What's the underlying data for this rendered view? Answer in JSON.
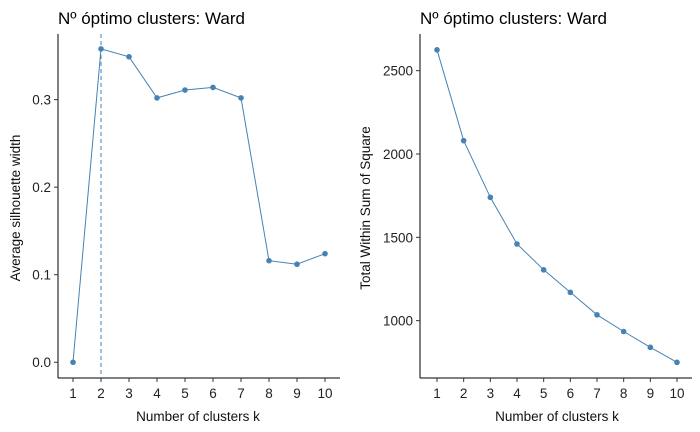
{
  "chart_data": [
    {
      "type": "line",
      "title": "Nº óptimo clusters: Ward",
      "xlabel": "Number of clusters k",
      "ylabel": "Average silhouette width",
      "categories": [
        "1",
        "2",
        "3",
        "4",
        "5",
        "6",
        "7",
        "8",
        "9",
        "10"
      ],
      "values": [
        0.0,
        0.358,
        0.349,
        0.302,
        0.311,
        0.314,
        0.302,
        0.116,
        0.112,
        0.124
      ],
      "yticks": [
        0.0,
        0.1,
        0.2,
        0.3
      ],
      "ytick_labels": [
        "0.0",
        "0.1",
        "0.2",
        "0.3"
      ],
      "ylim": [
        -0.018,
        0.375
      ],
      "optimal_k": "2",
      "grid": false,
      "color": "#4682B4"
    },
    {
      "type": "line",
      "title": "Nº óptimo clusters: Ward",
      "xlabel": "Number of clusters k",
      "ylabel": "Total Within Sum of Square",
      "categories": [
        "1",
        "2",
        "3",
        "4",
        "5",
        "6",
        "7",
        "8",
        "9",
        "10"
      ],
      "values": [
        2625,
        2080,
        1740,
        1460,
        1305,
        1170,
        1035,
        935,
        840,
        750
      ],
      "yticks": [
        1000,
        1500,
        2000,
        2500
      ],
      "ytick_labels": [
        "1000",
        "1500",
        "2000",
        "2500"
      ],
      "ylim": [
        656,
        2720
      ],
      "grid": false,
      "color": "#4682B4"
    }
  ]
}
